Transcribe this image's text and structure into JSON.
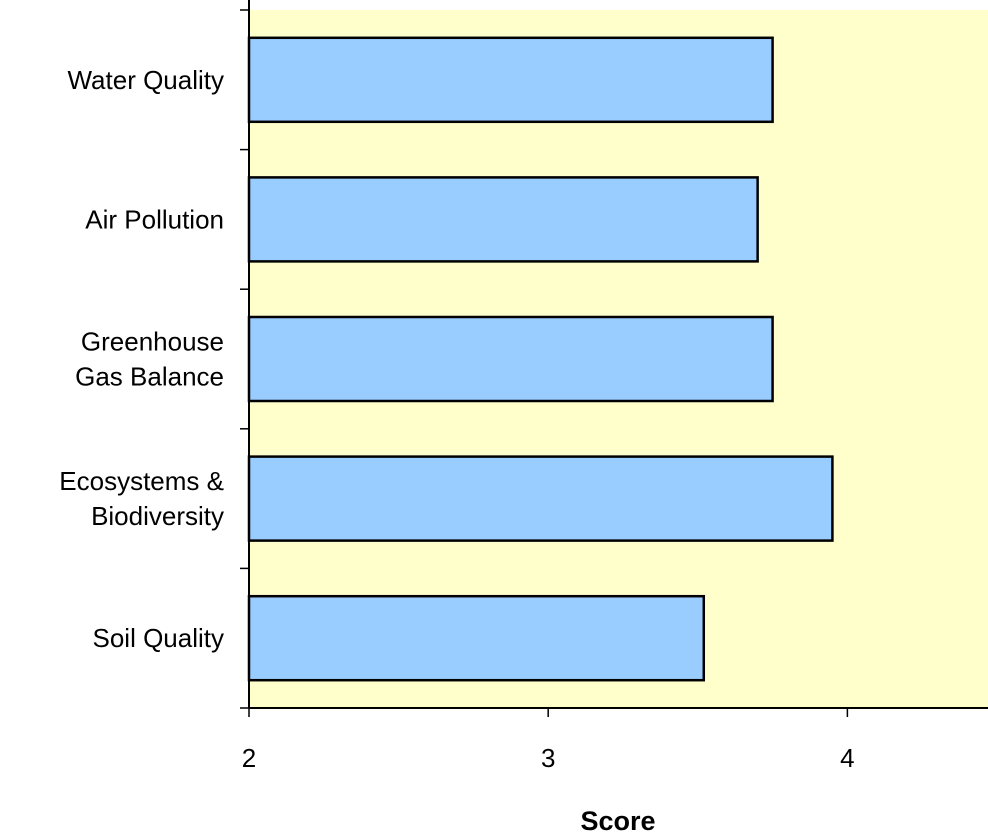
{
  "chart_data": {
    "type": "bar",
    "orientation": "horizontal",
    "categories": [
      [
        "Water Quality"
      ],
      [
        "Air Pollution"
      ],
      [
        "Greenhouse",
        "Gas Balance"
      ],
      [
        "Ecosystems &",
        "Biodiversity"
      ],
      [
        "Soil Quality"
      ]
    ],
    "values": [
      3.75,
      3.7,
      3.75,
      3.95,
      3.52
    ],
    "xlabel": "Score",
    "ylabel": "",
    "xlim": [
      2,
      4.47
    ],
    "xticks": [
      "2",
      "3",
      "4"
    ],
    "grid": false,
    "legend": "none",
    "colors": {
      "bar_fill": "#99ccff",
      "bar_stroke": "#000000",
      "plot_background": "#ffffcc",
      "axis": "#000000"
    }
  }
}
